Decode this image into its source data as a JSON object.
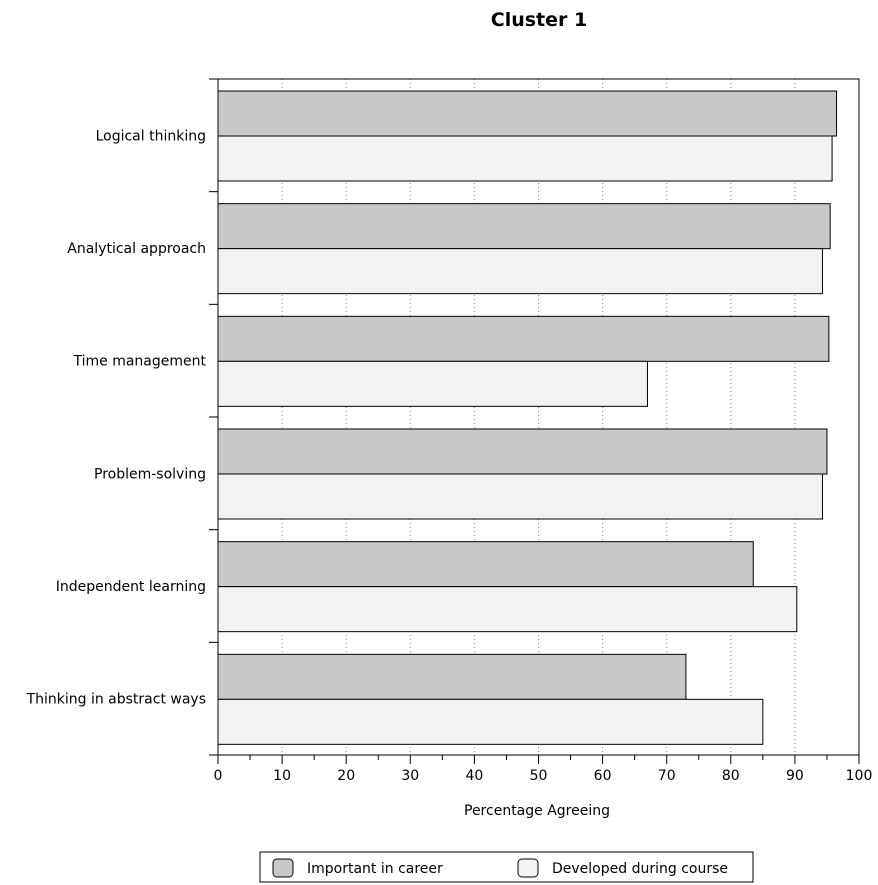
{
  "chart_data": {
    "type": "bar",
    "orientation": "horizontal",
    "title": "Cluster 1",
    "xlabel": "Percentage Agreeing",
    "ylabel": "",
    "xlim": [
      0,
      100
    ],
    "x_ticks": [
      0,
      10,
      20,
      30,
      40,
      50,
      60,
      70,
      80,
      90,
      100
    ],
    "x_minor_tick_step": 5,
    "grid": "vertical dotted",
    "legend_position": "bottom",
    "categories": [
      "Logical thinking",
      "Analytical approach",
      "Time management",
      "Problem-solving",
      "Independent learning",
      "Thinking in abstract ways"
    ],
    "series": [
      {
        "name": "Important in career",
        "color": "#c8c8c8",
        "values": [
          96.5,
          95.5,
          95.3,
          95.0,
          83.5,
          73.0
        ]
      },
      {
        "name": "Developed during course",
        "color": "#f2f2f2",
        "values": [
          95.8,
          94.3,
          67.0,
          94.3,
          90.3,
          85.0
        ]
      }
    ]
  }
}
